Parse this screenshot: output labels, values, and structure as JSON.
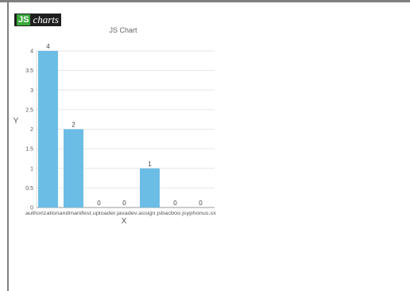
{
  "logo": {
    "js": "JS",
    "charts": "charts"
  },
  "chart_data": {
    "type": "bar",
    "title": "JS Chart",
    "xlabel": "X",
    "ylabel": "Y",
    "categories": [
      "authorization",
      "androidmanifest",
      "uploader",
      "javadev",
      "assign",
      "jsbacboo",
      "jsyphonus"
    ],
    "category_labels_text": "authorizationandmanifest.uploader.javadev.assign.jsbacboo.jsyphonus.sx",
    "values": [
      4,
      2,
      0,
      0,
      1,
      0,
      0
    ],
    "ylim": [
      0,
      4
    ],
    "yticks": [
      0,
      0.5,
      1,
      1.5,
      2,
      2.5,
      3,
      3.5,
      4
    ],
    "ytick_labels": [
      "0",
      "0.5",
      "1",
      "1.5",
      "2",
      "2.5",
      "3",
      "3.5",
      "4"
    ],
    "bar_color": "#6bbde6",
    "grid": true,
    "data_labels": [
      "4",
      "2",
      "0",
      "0",
      "1",
      "0",
      "0"
    ]
  }
}
